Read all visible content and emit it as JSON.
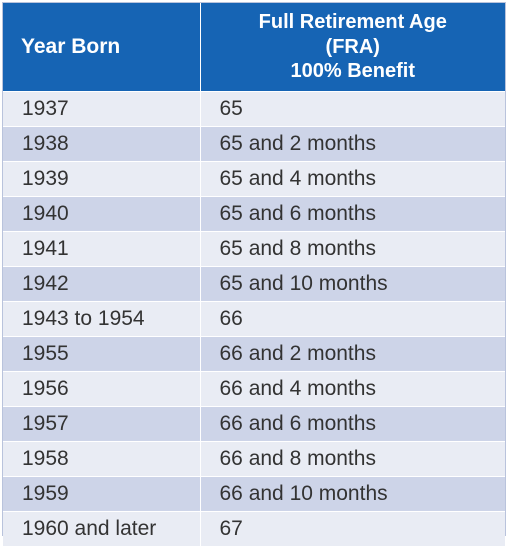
{
  "table": {
    "headers": {
      "year_born": "Year Born",
      "fra_line1": "Full Retirement Age",
      "fra_line2": "(FRA)",
      "fra_line3": "100% Benefit"
    },
    "rows": [
      {
        "year": "1937",
        "fra": "65"
      },
      {
        "year": "1938",
        "fra": "65 and 2 months"
      },
      {
        "year": "1939",
        "fra": "65 and 4 months"
      },
      {
        "year": "1940",
        "fra": "65 and 6 months"
      },
      {
        "year": "1941",
        "fra": "65 and 8 months"
      },
      {
        "year": "1942",
        "fra": "65 and 10 months"
      },
      {
        "year": "1943 to 1954",
        "fra": "66"
      },
      {
        "year": "1955",
        "fra": "66 and 2 months"
      },
      {
        "year": "1956",
        "fra": "66 and 4 months"
      },
      {
        "year": "1957",
        "fra": "66 and 6 months"
      },
      {
        "year": "1958",
        "fra": "66 and 8 months"
      },
      {
        "year": "1959",
        "fra": "66 and 10 months"
      },
      {
        "year": "1960 and later",
        "fra": "67"
      }
    ]
  },
  "colors": {
    "header_bg": "#1664b4",
    "row_light": "#e9ecf4",
    "row_dark": "#cdd4e8"
  }
}
